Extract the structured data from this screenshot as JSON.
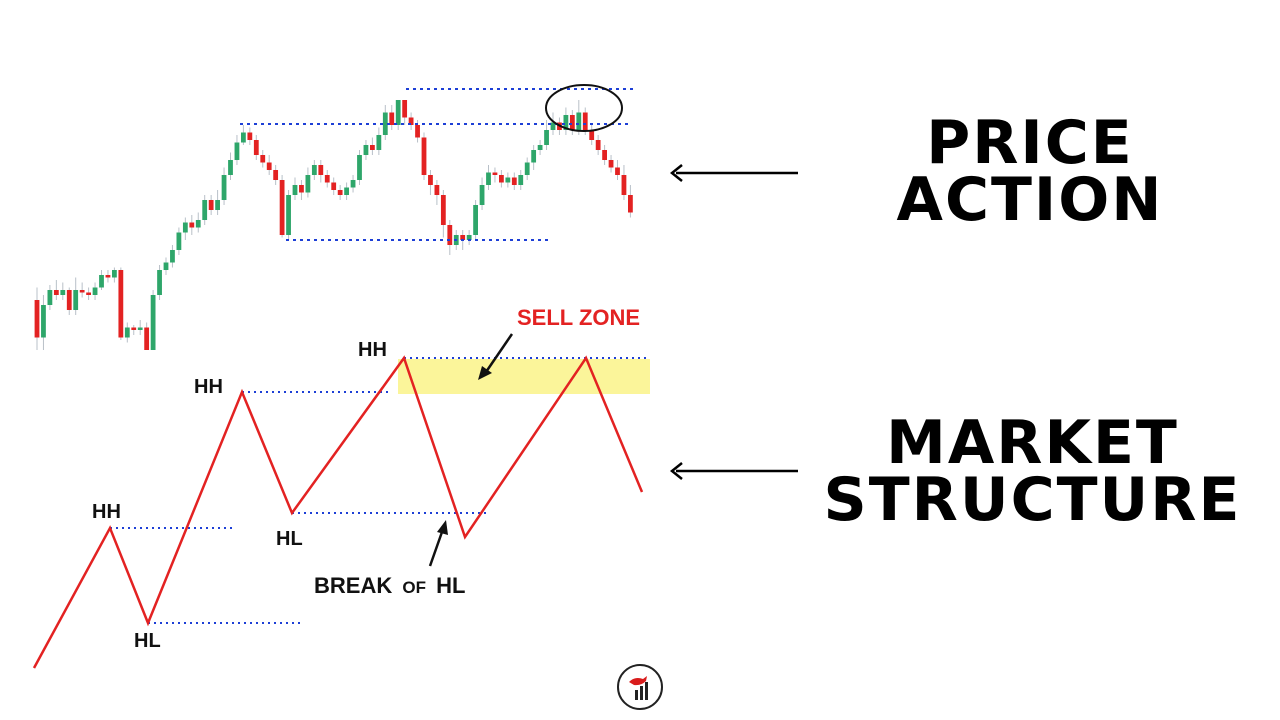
{
  "titles": {
    "price_action_line1": "PRICE",
    "price_action_line2": "ACTION",
    "market_structure_line1": "MARKET",
    "market_structure_line2": "STRUCTURE"
  },
  "annotations": {
    "sell_zone": "SELL ZONE",
    "break_main": "BREAK",
    "break_of": "OF",
    "break_hl": "HL"
  },
  "structure_points": [
    {
      "label": "",
      "kind": "start"
    },
    {
      "label": "HH",
      "kind": "high"
    },
    {
      "label": "HL",
      "kind": "low"
    },
    {
      "label": "HH",
      "kind": "high"
    },
    {
      "label": "HL",
      "kind": "low"
    },
    {
      "label": "HH",
      "kind": "high"
    },
    {
      "label": "",
      "kind": "low"
    },
    {
      "label": "",
      "kind": "high"
    },
    {
      "label": "",
      "kind": "end"
    }
  ],
  "candles": [
    [
      0.2,
      0.05,
      0.0,
      0.25
    ],
    [
      0.05,
      0.18,
      0.0,
      0.22
    ],
    [
      0.18,
      0.24,
      0.16,
      0.26
    ],
    [
      0.24,
      0.22,
      0.2,
      0.28
    ],
    [
      0.22,
      0.24,
      0.2,
      0.27
    ],
    [
      0.24,
      0.16,
      0.14,
      0.25
    ],
    [
      0.16,
      0.24,
      0.14,
      0.29
    ],
    [
      0.24,
      0.23,
      0.21,
      0.27
    ],
    [
      0.23,
      0.22,
      0.2,
      0.25
    ],
    [
      0.22,
      0.25,
      0.2,
      0.27
    ],
    [
      0.25,
      0.3,
      0.24,
      0.32
    ],
    [
      0.3,
      0.29,
      0.27,
      0.32
    ],
    [
      0.29,
      0.32,
      0.27,
      0.33
    ],
    [
      0.32,
      0.05,
      0.04,
      0.33
    ],
    [
      0.05,
      0.09,
      0.03,
      0.11
    ],
    [
      0.09,
      0.08,
      0.06,
      0.1
    ],
    [
      0.08,
      0.09,
      0.06,
      0.12
    ],
    [
      0.09,
      0.0,
      0.0,
      0.11
    ],
    [
      0.0,
      0.22,
      0.0,
      0.24
    ],
    [
      0.22,
      0.32,
      0.2,
      0.34
    ],
    [
      0.32,
      0.35,
      0.3,
      0.37
    ],
    [
      0.35,
      0.4,
      0.33,
      0.42
    ],
    [
      0.4,
      0.47,
      0.38,
      0.49
    ],
    [
      0.47,
      0.51,
      0.44,
      0.53
    ],
    [
      0.51,
      0.49,
      0.46,
      0.54
    ],
    [
      0.49,
      0.52,
      0.47,
      0.55
    ],
    [
      0.52,
      0.6,
      0.5,
      0.62
    ],
    [
      0.6,
      0.56,
      0.54,
      0.62
    ],
    [
      0.56,
      0.6,
      0.54,
      0.64
    ],
    [
      0.6,
      0.7,
      0.58,
      0.73
    ],
    [
      0.7,
      0.76,
      0.68,
      0.79
    ],
    [
      0.76,
      0.83,
      0.74,
      0.86
    ],
    [
      0.83,
      0.87,
      0.82,
      0.9
    ],
    [
      0.87,
      0.84,
      0.82,
      0.89
    ],
    [
      0.84,
      0.78,
      0.76,
      0.86
    ],
    [
      0.78,
      0.75,
      0.73,
      0.8
    ],
    [
      0.75,
      0.72,
      0.7,
      0.78
    ],
    [
      0.72,
      0.68,
      0.66,
      0.74
    ],
    [
      0.68,
      0.46,
      0.45,
      0.7
    ],
    [
      0.46,
      0.62,
      0.44,
      0.64
    ],
    [
      0.62,
      0.66,
      0.6,
      0.69
    ],
    [
      0.66,
      0.63,
      0.6,
      0.68
    ],
    [
      0.63,
      0.7,
      0.61,
      0.73
    ],
    [
      0.7,
      0.74,
      0.68,
      0.76
    ],
    [
      0.74,
      0.7,
      0.67,
      0.76
    ],
    [
      0.7,
      0.67,
      0.65,
      0.72
    ],
    [
      0.67,
      0.64,
      0.62,
      0.69
    ],
    [
      0.64,
      0.62,
      0.6,
      0.66
    ],
    [
      0.62,
      0.65,
      0.6,
      0.67
    ],
    [
      0.65,
      0.68,
      0.63,
      0.7
    ],
    [
      0.68,
      0.78,
      0.66,
      0.8
    ],
    [
      0.78,
      0.82,
      0.76,
      0.84
    ],
    [
      0.82,
      0.8,
      0.78,
      0.85
    ],
    [
      0.8,
      0.86,
      0.78,
      0.89
    ],
    [
      0.86,
      0.95,
      0.84,
      0.98
    ],
    [
      0.95,
      0.9,
      0.88,
      0.98
    ],
    [
      0.9,
      1.0,
      0.88,
      1.0
    ],
    [
      1.0,
      0.93,
      0.9,
      1.0
    ],
    [
      0.93,
      0.9,
      0.88,
      0.95
    ],
    [
      0.9,
      0.85,
      0.83,
      0.92
    ],
    [
      0.85,
      0.7,
      0.68,
      0.87
    ],
    [
      0.7,
      0.66,
      0.62,
      0.72
    ],
    [
      0.66,
      0.62,
      0.58,
      0.68
    ],
    [
      0.62,
      0.5,
      0.45,
      0.64
    ],
    [
      0.5,
      0.42,
      0.38,
      0.52
    ],
    [
      0.42,
      0.46,
      0.4,
      0.48
    ],
    [
      0.46,
      0.44,
      0.4,
      0.48
    ],
    [
      0.44,
      0.46,
      0.42,
      0.48
    ],
    [
      0.46,
      0.58,
      0.44,
      0.6
    ],
    [
      0.58,
      0.66,
      0.56,
      0.69
    ],
    [
      0.66,
      0.71,
      0.64,
      0.74
    ],
    [
      0.71,
      0.7,
      0.67,
      0.73
    ],
    [
      0.7,
      0.67,
      0.65,
      0.72
    ],
    [
      0.67,
      0.69,
      0.65,
      0.71
    ],
    [
      0.69,
      0.66,
      0.64,
      0.71
    ],
    [
      0.66,
      0.7,
      0.64,
      0.72
    ],
    [
      0.7,
      0.75,
      0.68,
      0.77
    ],
    [
      0.75,
      0.8,
      0.72,
      0.82
    ],
    [
      0.8,
      0.82,
      0.78,
      0.84
    ],
    [
      0.82,
      0.88,
      0.8,
      0.92
    ],
    [
      0.88,
      0.91,
      0.86,
      0.95
    ],
    [
      0.91,
      0.88,
      0.86,
      0.93
    ],
    [
      0.88,
      0.94,
      0.86,
      0.97
    ],
    [
      0.94,
      0.88,
      0.86,
      0.96
    ],
    [
      0.88,
      0.95,
      0.86,
      1.0
    ],
    [
      0.95,
      0.88,
      0.86,
      0.97
    ],
    [
      0.88,
      0.84,
      0.82,
      0.9
    ],
    [
      0.84,
      0.8,
      0.78,
      0.86
    ],
    [
      0.8,
      0.76,
      0.74,
      0.82
    ],
    [
      0.76,
      0.73,
      0.71,
      0.78
    ],
    [
      0.73,
      0.7,
      0.68,
      0.76
    ],
    [
      0.7,
      0.62,
      0.6,
      0.74
    ],
    [
      0.62,
      0.55,
      0.53,
      0.66
    ]
  ],
  "colors": {
    "bull_candle": "#2ea66a",
    "bear_candle": "#e32222",
    "level_line": "#1d3fd6",
    "structure_line": "#e32222",
    "sell_zone_fill": "#fbf59a",
    "sell_zone_text": "#e32222",
    "title_text": "#000000"
  },
  "logo": {
    "icon": "bull-chart-logo-icon"
  }
}
